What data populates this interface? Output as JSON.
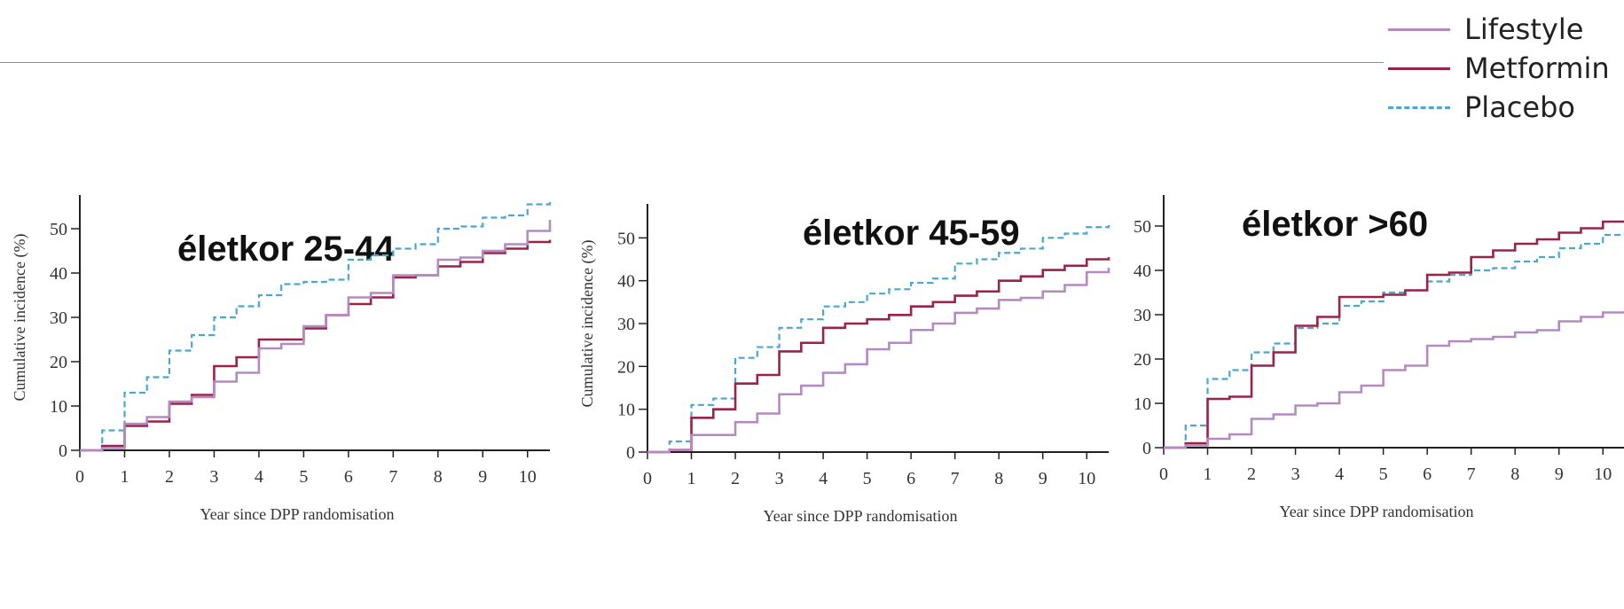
{
  "legend": {
    "items": [
      {
        "label": "Lifestyle",
        "color": "#b48bc1",
        "style": "solid"
      },
      {
        "label": "Metformin",
        "color": "#9b2248",
        "style": "solid"
      },
      {
        "label": "Placebo",
        "color": "#4aa7cd",
        "style": "dashed"
      }
    ]
  },
  "chart_data": [
    {
      "type": "line",
      "title": "életkor 25-44",
      "xlabel": "Year since DPP randomisation",
      "ylabel": "Cumulative incidence (%)",
      "xlim": [
        0,
        10.5
      ],
      "ylim": [
        0,
        60
      ],
      "xticks": [
        "0",
        "1",
        "2",
        "3",
        "4",
        "5",
        "6",
        "7",
        "8",
        "9",
        "10"
      ],
      "yticks": [
        "0",
        "10",
        "20",
        "30",
        "40",
        "50",
        "60"
      ],
      "series": [
        {
          "name": "Placebo",
          "x": [
            0,
            0.5,
            1,
            1.5,
            2,
            2.5,
            3,
            3.5,
            4,
            4.5,
            5,
            5.5,
            6,
            6.5,
            7,
            7.5,
            8,
            8.5,
            9,
            9.5,
            10,
            10.5
          ],
          "y": [
            0,
            4.5,
            13,
            16.5,
            22.5,
            26,
            30,
            32.5,
            35,
            37.5,
            38,
            38.5,
            43,
            44,
            45.5,
            46.5,
            50,
            50.5,
            52.5,
            53,
            55.5,
            56.5
          ]
        },
        {
          "name": "Metformin",
          "x": [
            0,
            0.5,
            1,
            1.5,
            2,
            2.5,
            3,
            3.5,
            4,
            4.5,
            5,
            5.5,
            6,
            6.5,
            7,
            7.5,
            8,
            8.5,
            9,
            9.5,
            10,
            10.5
          ],
          "y": [
            0,
            1,
            5.5,
            6.5,
            10.5,
            12.5,
            19,
            21,
            25,
            25,
            27.5,
            30.5,
            33,
            34.5,
            39,
            39.5,
            41.5,
            42.5,
            44.5,
            45.5,
            47,
            47.5
          ]
        },
        {
          "name": "Lifestyle",
          "x": [
            0,
            0.5,
            1,
            1.5,
            2,
            2.5,
            3,
            3.5,
            4,
            4.5,
            5,
            5.5,
            6,
            6.5,
            7,
            7.5,
            8,
            8.5,
            9,
            9.5,
            10,
            10.5
          ],
          "y": [
            0,
            0.5,
            6,
            7.5,
            11,
            12,
            15.5,
            17.5,
            23,
            24,
            28,
            30.5,
            34.5,
            35.5,
            39.5,
            39.5,
            43,
            43.5,
            45,
            46.5,
            49.5,
            52
          ]
        }
      ]
    },
    {
      "type": "line",
      "title": "életkor 45-59",
      "xlabel": "Year since DPP randomisation",
      "ylabel": "Cumulative incidence (%)",
      "xlim": [
        0,
        10.5
      ],
      "ylim": [
        0,
        60
      ],
      "xticks": [
        "0",
        "1",
        "2",
        "3",
        "4",
        "5",
        "6",
        "7",
        "8",
        "9",
        "10"
      ],
      "yticks": [
        "0",
        "10",
        "20",
        "30",
        "40",
        "50",
        "60"
      ],
      "series": [
        {
          "name": "Placebo",
          "x": [
            0,
            0.5,
            1,
            1.5,
            2,
            2.5,
            3,
            3.5,
            4,
            4.5,
            5,
            5.5,
            6,
            6.5,
            7,
            7.5,
            8,
            8.5,
            9,
            9.5,
            10,
            10.5
          ],
          "y": [
            0,
            2.5,
            11,
            12.5,
            22,
            24.5,
            29,
            31,
            34,
            35,
            37,
            38,
            39.5,
            40.5,
            44,
            45,
            46.5,
            47.5,
            50,
            51,
            52.5,
            53
          ]
        },
        {
          "name": "Metformin",
          "x": [
            0,
            0.5,
            1,
            1.5,
            2,
            2.5,
            3,
            3.5,
            4,
            4.5,
            5,
            5.5,
            6,
            6.5,
            7,
            7.5,
            8,
            8.5,
            9,
            9.5,
            10,
            10.5
          ],
          "y": [
            0,
            0.5,
            8,
            10,
            16,
            18,
            23.5,
            25.5,
            29,
            30,
            31,
            32,
            34,
            35,
            36.5,
            37.5,
            40,
            41,
            42.5,
            43.5,
            45,
            45.5
          ]
        },
        {
          "name": "Lifestyle",
          "x": [
            0,
            0.5,
            1,
            1.5,
            2,
            2.5,
            3,
            3.5,
            4,
            4.5,
            5,
            5.5,
            6,
            6.5,
            7,
            7.5,
            8,
            8.5,
            9,
            9.5,
            10,
            10.5
          ],
          "y": [
            0,
            0.5,
            4,
            4,
            7,
            9,
            13.5,
            15.5,
            18.5,
            20.5,
            24,
            25.5,
            28.5,
            30,
            32.5,
            33.5,
            35.5,
            36,
            37.5,
            39,
            42,
            43
          ]
        }
      ]
    },
    {
      "type": "line",
      "title": "életkor >60",
      "xlabel": "Year since DPP randomisation",
      "ylabel": "",
      "xlim": [
        0,
        10.5
      ],
      "ylim": [
        0,
        60
      ],
      "xticks": [
        "0",
        "1",
        "2",
        "3",
        "4",
        "5",
        "6",
        "7",
        "8",
        "9",
        "10"
      ],
      "yticks": [
        "0",
        "10",
        "20",
        "30",
        "40",
        "50",
        "60"
      ],
      "series": [
        {
          "name": "Placebo",
          "x": [
            0,
            0.5,
            1,
            1.5,
            2,
            2.5,
            3,
            3.5,
            4,
            4.5,
            5,
            5.5,
            6,
            6.5,
            7,
            7.5,
            8,
            8.5,
            9,
            9.5,
            10,
            10.5
          ],
          "y": [
            0,
            5,
            15.5,
            17.5,
            21.5,
            23.5,
            27,
            28,
            32,
            33,
            35,
            35.5,
            37.5,
            39,
            40,
            40.5,
            42,
            43,
            45,
            46,
            48,
            49
          ]
        },
        {
          "name": "Metformin",
          "x": [
            0,
            0.5,
            1,
            1.5,
            2,
            2.5,
            3,
            3.5,
            4,
            4.5,
            5,
            5.5,
            6,
            6.5,
            7,
            7.5,
            8,
            8.5,
            9,
            9.5,
            10,
            10.5
          ],
          "y": [
            0,
            1,
            11,
            11.5,
            18.5,
            21.5,
            27.5,
            29.5,
            34,
            34,
            34.5,
            35.5,
            39,
            39.5,
            43,
            44.5,
            46,
            47,
            48.5,
            49.5,
            51,
            51
          ]
        },
        {
          "name": "Lifestyle",
          "x": [
            0,
            0.5,
            1,
            1.5,
            2,
            2.5,
            3,
            3.5,
            4,
            4.5,
            5,
            5.5,
            6,
            6.5,
            7,
            7.5,
            8,
            8.5,
            9,
            9.5,
            10,
            10.5
          ],
          "y": [
            0,
            0.5,
            2,
            3,
            6.5,
            7.5,
            9.5,
            10,
            12.5,
            14,
            17.5,
            18.5,
            23,
            24,
            24.5,
            25,
            26,
            26.5,
            28.5,
            29.5,
            30.5,
            31
          ]
        }
      ]
    }
  ]
}
